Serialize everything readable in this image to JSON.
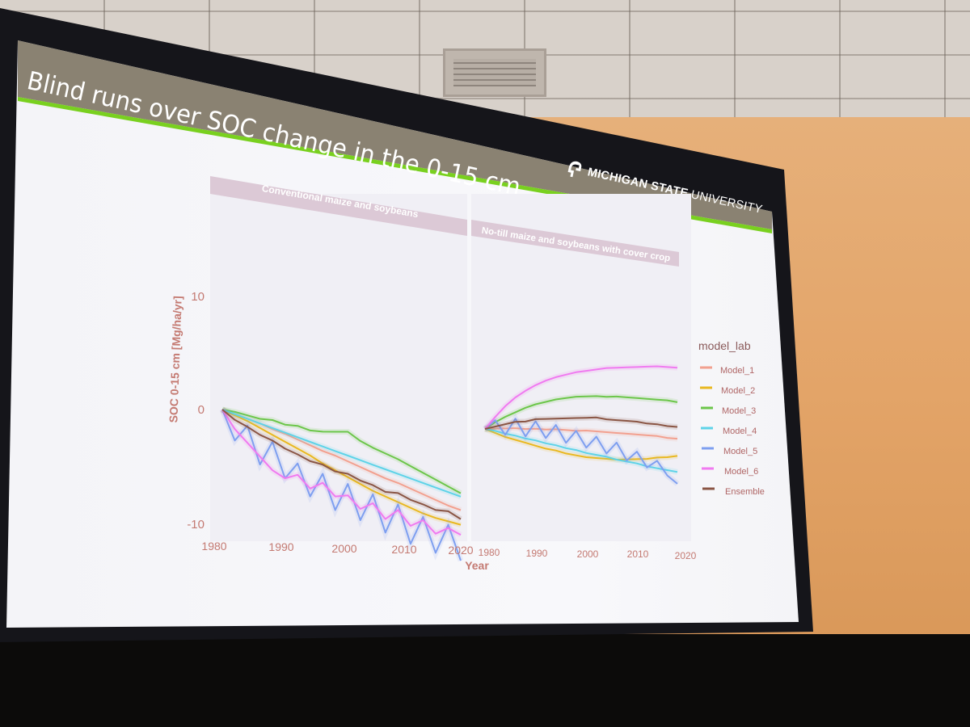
{
  "slide": {
    "title": "Blind runs over SOC change in the 0-15 cm",
    "logo_bold": "MICHIGAN STATE",
    "logo_light": "UNIVERSITY"
  },
  "colors": {
    "Model_1": "#f2a08f",
    "Model_2": "#e9b820",
    "Model_3": "#6cc64a",
    "Model_4": "#5ed3e8",
    "Model_5": "#7e9ff0",
    "Model_6": "#f07af0",
    "Ensemble": "#8a5544",
    "title_bar": "#8a8272",
    "title_accent": "#79d01f",
    "strip": "#dcc9d6"
  },
  "chart_data": {
    "type": "line",
    "xlabel": "Year",
    "ylabel": "SOC  0-15 cm [Mg/ha/yr]",
    "xlim": [
      1980,
      2020
    ],
    "ylim": [
      -10.5,
      15.5
    ],
    "x_ticks": [
      "1980",
      "1990",
      "2000",
      "2010",
      "2020"
    ],
    "y_ticks": [
      "-10",
      "0",
      "10"
    ],
    "legend_title": "model_lab",
    "legend_position": "right",
    "grid": false,
    "x": [
      1981,
      1983,
      1985,
      1987,
      1989,
      1991,
      1993,
      1995,
      1997,
      1999,
      2001,
      2003,
      2005,
      2007,
      2009,
      2011,
      2013,
      2015,
      2017,
      2019
    ],
    "panels": [
      {
        "strip": "Conventional maize and soybeans",
        "series": [
          {
            "name": "Model_1",
            "values": [
              0,
              -0.2,
              -0.4,
              -0.6,
              -0.9,
              -1.1,
              -1.4,
              -1.7,
              -2.0,
              -2.2,
              -2.5,
              -2.8,
              -3.1,
              -3.4,
              -3.6,
              -3.9,
              -4.2,
              -4.5,
              -4.8,
              -5.0
            ]
          },
          {
            "name": "Model_2",
            "values": [
              0,
              -0.3,
              -0.6,
              -1.0,
              -1.4,
              -1.8,
              -2.2,
              -2.6,
              -3.1,
              -3.5,
              -3.9,
              -4.3,
              -4.7,
              -5.0,
              -5.3,
              -5.6,
              -5.9,
              -6.1,
              -6.2,
              -6.3
            ]
          },
          {
            "name": "Model_3",
            "values": [
              0,
              0.0,
              -0.1,
              -0.2,
              -0.1,
              -0.3,
              -0.2,
              -0.4,
              -0.3,
              -0.1,
              0.1,
              -0.5,
              -0.9,
              -1.2,
              -1.5,
              -1.9,
              -2.3,
              -2.7,
              -3.1,
              -3.5
            ]
          },
          {
            "name": "Model_4",
            "values": [
              0,
              -0.2,
              -0.4,
              -0.6,
              -0.8,
              -1.0,
              -1.2,
              -1.4,
              -1.6,
              -1.8,
              -2.0,
              -2.2,
              -2.4,
              -2.6,
              -2.8,
              -3.0,
              -3.2,
              -3.4,
              -3.6,
              -3.8
            ]
          },
          {
            "name": "Model_5",
            "values": [
              0,
              -2.5,
              -1.0,
              -4.2,
              -2.0,
              -5.0,
              -3.5,
              -6.2,
              -4.0,
              -7.0,
              -4.5,
              -7.5,
              -5.0,
              -8.2,
              -5.5,
              -8.8,
              -6.2,
              -9.2,
              -6.5,
              -9.5
            ]
          },
          {
            "name": "Model_6",
            "values": [
              0,
              -1.5,
              -2.5,
              -3.5,
              -4.5,
              -5.0,
              -4.5,
              -5.5,
              -4.8,
              -5.8,
              -5.5,
              -6.5,
              -5.8,
              -7.0,
              -6.0,
              -7.2,
              -6.5,
              -7.5,
              -6.8,
              -7.2
            ]
          },
          {
            "name": "Ensemble",
            "values": [
              0,
              -0.7,
              -1.1,
              -1.6,
              -1.9,
              -2.4,
              -2.7,
              -3.1,
              -3.2,
              -3.6,
              -3.6,
              -4.0,
              -4.2,
              -4.6,
              -4.5,
              -4.9,
              -5.1,
              -5.4,
              -5.3,
              -5.8
            ]
          }
        ]
      },
      {
        "strip": "No-till maize and soybeans with cover crop",
        "series": [
          {
            "name": "Model_1",
            "values": [
              0,
              0.2,
              0.4,
              0.6,
              0.7,
              0.9,
              1.0,
              1.2,
              1.3,
              1.4,
              1.6,
              1.7,
              1.8,
              1.9,
              2.0,
              2.1,
              2.2,
              2.3,
              2.3,
              2.4
            ]
          },
          {
            "name": "Model_2",
            "values": [
              0,
              -0.2,
              -0.4,
              -0.5,
              -0.6,
              -0.7,
              -0.8,
              -0.8,
              -0.9,
              -0.9,
              -0.9,
              -0.8,
              -0.7,
              -0.6,
              -0.4,
              -0.2,
              0.0,
              0.3,
              0.5,
              0.8
            ]
          },
          {
            "name": "Model_3",
            "values": [
              0,
              0.8,
              1.5,
              2.1,
              2.7,
              3.2,
              3.6,
              4.0,
              4.3,
              4.6,
              4.8,
              5.0,
              5.1,
              5.3,
              5.4,
              5.5,
              5.6,
              5.7,
              5.8,
              5.8
            ]
          },
          {
            "name": "Model_4",
            "values": [
              0,
              0.0,
              -0.1,
              -0.1,
              -0.2,
              -0.2,
              -0.3,
              -0.3,
              -0.4,
              -0.4,
              -0.5,
              -0.5,
              -0.5,
              -0.6,
              -0.6,
              -0.6,
              -0.7,
              -0.7,
              -0.7,
              -0.7
            ]
          },
          {
            "name": "Model_5",
            "values": [
              0,
              1.0,
              -0.2,
              1.5,
              0.0,
              1.6,
              0.2,
              1.6,
              0.1,
              1.4,
              0.0,
              1.2,
              -0.2,
              1.0,
              -0.5,
              0.5,
              -0.8,
              0.0,
              -1.2,
              -1.8
            ]
          },
          {
            "name": "Model_6",
            "values": [
              0,
              1.3,
              2.5,
              3.5,
              4.3,
              5.0,
              5.6,
              6.1,
              6.5,
              6.9,
              7.2,
              7.5,
              7.8,
              8.0,
              8.2,
              8.4,
              8.6,
              8.8,
              8.9,
              9.0
            ]
          },
          {
            "name": "Ensemble",
            "values": [
              0,
              0.4,
              0.8,
              1.2,
              1.4,
              1.8,
              2.0,
              2.2,
              2.4,
              2.6,
              2.8,
              3.0,
              3.0,
              3.1,
              3.2,
              3.3,
              3.3,
              3.4,
              3.4,
              3.5
            ]
          }
        ]
      }
    ]
  }
}
